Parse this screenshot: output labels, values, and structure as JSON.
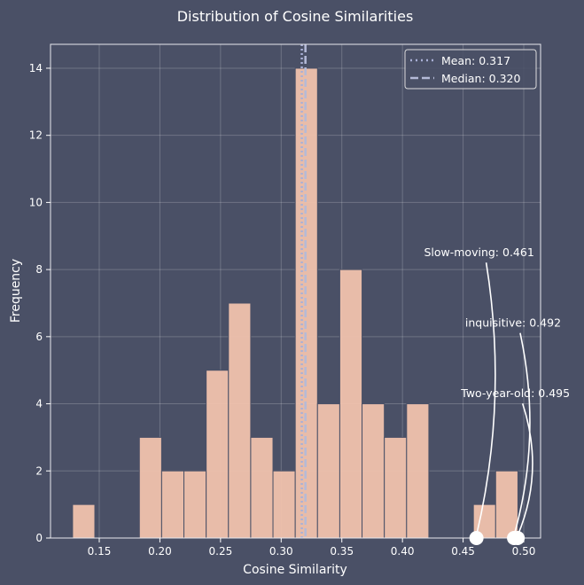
{
  "chart_data": {
    "type": "bar",
    "title": "Distribution of Cosine Similarities",
    "xlabel": "Cosine Similarity",
    "ylabel": "Frequency",
    "xlim": [
      0.115,
      0.5
    ],
    "ylim": [
      0,
      14.7
    ],
    "grid": true,
    "bin_start": 0.128,
    "bin_width": 0.01836,
    "counts": [
      1,
      0,
      0,
      3,
      2,
      2,
      5,
      7,
      3,
      2,
      14,
      4,
      8,
      4,
      3,
      4,
      0,
      0,
      1,
      2
    ],
    "xticks": [
      0.15,
      0.2,
      0.25,
      0.3,
      0.35,
      0.4,
      0.45,
      0.5
    ],
    "xtick_labels": [
      "0.15",
      "0.20",
      "0.25",
      "0.30",
      "0.35",
      "0.40",
      "0.45",
      "0.50"
    ],
    "yticks": [
      0,
      2,
      4,
      6,
      8,
      10,
      12,
      14
    ],
    "ytick_labels": [
      "0",
      "2",
      "4",
      "6",
      "8",
      "10",
      "12",
      "14"
    ],
    "mean": 0.317,
    "median": 0.32,
    "legend": {
      "position": "top-right",
      "entries": [
        "Mean: 0.317",
        "Median: 0.320"
      ]
    },
    "annotations": [
      {
        "text": "Slow-moving: 0.461",
        "x": 0.461,
        "y": 0,
        "text_x": 0.461,
        "text_y": 8.5
      },
      {
        "text": "inquisitive: 0.492",
        "x": 0.492,
        "y": 0,
        "text_x": 0.489,
        "text_y": 6.4
      },
      {
        "text": "Two-year-old: 0.495",
        "x": 0.495,
        "y": 0,
        "text_x": 0.491,
        "text_y": 4.3
      }
    ],
    "colors": {
      "background": "#4a5066",
      "bar": "#f0c2ad",
      "mean": "#a9b0d6",
      "median": "#b4bad8",
      "text": "#ffffff"
    }
  }
}
